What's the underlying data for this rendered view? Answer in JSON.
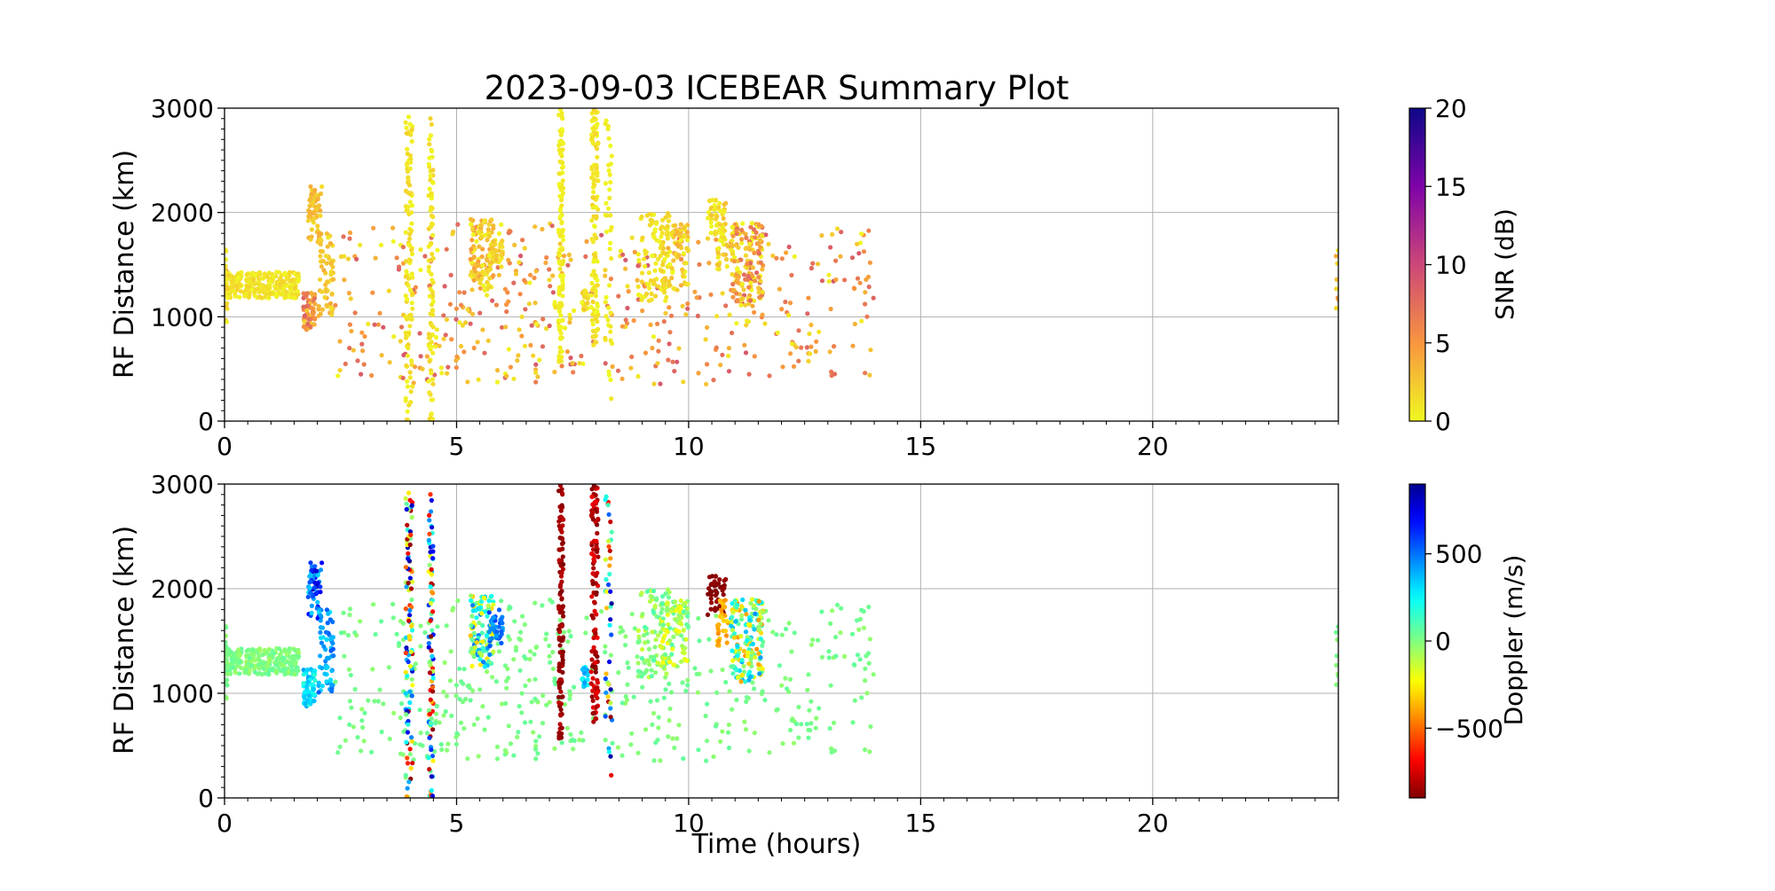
{
  "chart_data": {
    "type": "scatter",
    "title": "2023-09-03 ICEBEAR Summary Plot",
    "xlabel": "Time (hours)",
    "xlim": [
      0,
      24
    ],
    "xticks": [
      0,
      5,
      10,
      15,
      20
    ],
    "grid": true,
    "panels": [
      {
        "ylabel": "RF Distance (km)",
        "ylim": [
          0,
          3000
        ],
        "yticks": [
          0,
          1000,
          2000,
          3000
        ],
        "color_by": "snr",
        "colorbar": {
          "label": "SNR (dB)",
          "colormap": "plasma_r",
          "range": [
            0,
            20
          ],
          "ticks": [
            0,
            5,
            10,
            15,
            20
          ],
          "tick_labels": [
            "0",
            "5",
            "10",
            "15",
            "20"
          ]
        }
      },
      {
        "ylabel": "RF Distance (km)",
        "ylim": [
          0,
          3000
        ],
        "yticks": [
          0,
          1000,
          2000,
          3000
        ],
        "color_by": "doppler",
        "colorbar": {
          "label": "Doppler (m/s)",
          "colormap": "jet_r",
          "range": [
            -900,
            900
          ],
          "ticks": [
            500,
            0,
            -500
          ],
          "tick_labels": [
            "500",
            "0",
            "−500"
          ]
        }
      }
    ],
    "groups": [
      {
        "t": [
          0.0,
          1.6
        ],
        "r": [
          1180,
          1430
        ],
        "n": 260,
        "snr": [
          0,
          2
        ],
        "dop": [
          -60,
          60
        ]
      },
      {
        "t": [
          0.0,
          0.1
        ],
        "r": [
          900,
          1700
        ],
        "n": 20,
        "snr": [
          0,
          3
        ],
        "dop": [
          -40,
          40
        ]
      },
      {
        "t": [
          1.7,
          1.95
        ],
        "r": [
          850,
          1250
        ],
        "n": 60,
        "snr": [
          2,
          9
        ],
        "dop": [
          150,
          450
        ]
      },
      {
        "t": [
          1.8,
          2.1
        ],
        "r": [
          1700,
          2250
        ],
        "n": 60,
        "snr": [
          1,
          4
        ],
        "dop": [
          300,
          800
        ]
      },
      {
        "t": [
          2.0,
          2.35
        ],
        "r": [
          1000,
          1800
        ],
        "n": 60,
        "snr": [
          1,
          4
        ],
        "dop": [
          300,
          550
        ]
      },
      {
        "t": [
          2.3,
          14.0
        ],
        "r": [
          350,
          1900
        ],
        "n": 480,
        "snr": [
          0,
          9
        ],
        "dop": [
          -40,
          60
        ]
      },
      {
        "t": [
          3.9,
          4.05
        ],
        "r": [
          0,
          2950
        ],
        "n": 110,
        "snr": [
          0,
          2
        ],
        "dop": [
          -900,
          900
        ]
      },
      {
        "t": [
          4.4,
          4.5
        ],
        "r": [
          0,
          2950
        ],
        "n": 90,
        "snr": [
          0,
          2
        ],
        "dop": [
          -900,
          900
        ]
      },
      {
        "t": [
          5.3,
          5.8
        ],
        "r": [
          1250,
          1950
        ],
        "n": 110,
        "snr": [
          0,
          5
        ],
        "dop": [
          -350,
          550
        ]
      },
      {
        "t": [
          5.7,
          6.0
        ],
        "r": [
          1450,
          1800
        ],
        "n": 40,
        "snr": [
          0,
          3
        ],
        "dop": [
          400,
          600
        ]
      },
      {
        "t": [
          7.2,
          7.3
        ],
        "r": [
          550,
          3000
        ],
        "n": 120,
        "snr": [
          0,
          1
        ],
        "dop": [
          -900,
          -800
        ]
      },
      {
        "t": [
          7.7,
          7.85
        ],
        "r": [
          1050,
          1250
        ],
        "n": 25,
        "snr": [
          0,
          3
        ],
        "dop": [
          200,
          450
        ]
      },
      {
        "t": [
          7.9,
          8.05
        ],
        "r": [
          700,
          3000
        ],
        "n": 120,
        "snr": [
          0,
          2
        ],
        "dop": [
          -900,
          -700
        ]
      },
      {
        "t": [
          8.2,
          8.35
        ],
        "r": [
          0,
          2900
        ],
        "n": 45,
        "snr": [
          0,
          1
        ],
        "dop": [
          -900,
          900
        ]
      },
      {
        "t": [
          8.9,
          9.6
        ],
        "r": [
          1150,
          2000
        ],
        "n": 80,
        "snr": [
          0,
          2
        ],
        "dop": [
          -150,
          100
        ]
      },
      {
        "t": [
          9.4,
          10.0
        ],
        "r": [
          1250,
          1900
        ],
        "n": 90,
        "snr": [
          0,
          4
        ],
        "dop": [
          -250,
          100
        ]
      },
      {
        "t": [
          10.4,
          10.8
        ],
        "r": [
          1750,
          2130
        ],
        "n": 45,
        "snr": [
          0,
          3
        ],
        "dop": [
          -900,
          -850
        ]
      },
      {
        "t": [
          10.6,
          10.85
        ],
        "r": [
          1450,
          1900
        ],
        "n": 30,
        "snr": [
          0,
          3
        ],
        "dop": [
          -450,
          -300
        ]
      },
      {
        "t": [
          10.9,
          11.6
        ],
        "r": [
          1100,
          1900
        ],
        "n": 140,
        "snr": [
          0,
          8
        ],
        "dop": [
          -450,
          450
        ]
      },
      {
        "t": [
          23.95,
          24.0
        ],
        "r": [
          800,
          1700
        ],
        "n": 8,
        "snr": [
          1,
          5
        ],
        "dop": [
          -40,
          40
        ]
      }
    ]
  }
}
